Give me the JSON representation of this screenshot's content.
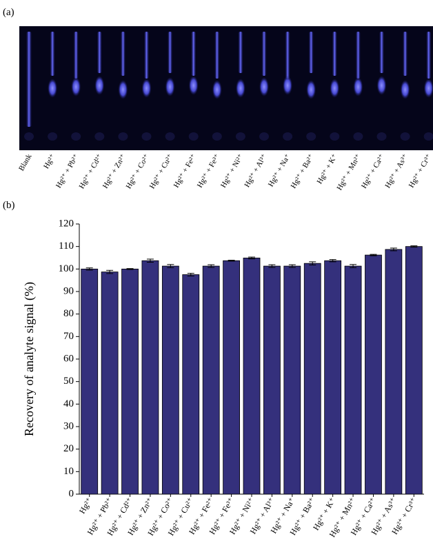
{
  "panel_a": {
    "label": "(a)",
    "lanes": [
      "Blank",
      "Hg²⁺",
      "Hg²⁺ + Pb²⁺",
      "Hg²⁺ + Cd²⁺",
      "Hg²⁺ + Zn²⁺",
      "Hg²⁺ + Co²⁺",
      "Hg²⁺ + Cu²⁺",
      "Hg²⁺ + Fe²⁺",
      "Hg²⁺ + Fe³⁺",
      "Hg²⁺ + Ni²⁺",
      "Hg²⁺ + Al³⁺",
      "Hg²⁺ + Na⁺",
      "Hg²⁺ + Ba²⁺",
      "Hg²⁺ + K⁺",
      "Hg²⁺ + Mn²⁺",
      "Hg²⁺ + Ca²⁺",
      "Hg²⁺ + As³⁺",
      "Hg²⁺ + Cr³⁺"
    ]
  },
  "chart_data": {
    "type": "bar",
    "panel_label": "(b)",
    "y_label": "Recovery of analyte signal (%)",
    "categories": [
      "Hg²⁺",
      "Hg²⁺ + Pb²⁺",
      "Hg²⁺ + Cd²⁺",
      "Hg²⁺ + Zn²⁺",
      "Hg²⁺ + Co²⁺",
      "Hg²⁺ + Cu²⁺",
      "Hg²⁺ + Fe²⁺",
      "Hg²⁺ + Fe³⁺",
      "Hg²⁺ + Ni²⁺",
      "Hg²⁺ + Al³⁺",
      "Hg²⁺ + Na⁺",
      "Hg²⁺ + Ba²⁺",
      "Hg²⁺ + K⁺",
      "Hg²⁺ + Mn²⁺",
      "Hg²⁺ + Ca²⁺",
      "Hg²⁺ + As³⁺",
      "Hg²⁺ + Cr³⁺"
    ],
    "values": [
      100,
      98.7,
      100,
      103.7,
      101.3,
      97.5,
      101.3,
      103.7,
      104.9,
      101.3,
      101.3,
      102.5,
      103.7,
      101.3,
      106.2,
      108.7,
      110
    ],
    "errors": [
      0.5,
      0.7,
      0.2,
      0.7,
      0.7,
      0.6,
      0.6,
      0.2,
      0.4,
      0.6,
      0.6,
      0.7,
      0.5,
      0.7,
      0.3,
      0.6,
      0.3
    ],
    "color": "#34307c",
    "ylim": [
      0,
      120
    ],
    "yticks": [
      0,
      10,
      20,
      30,
      40,
      50,
      60,
      70,
      80,
      90,
      100,
      110,
      120
    ]
  }
}
